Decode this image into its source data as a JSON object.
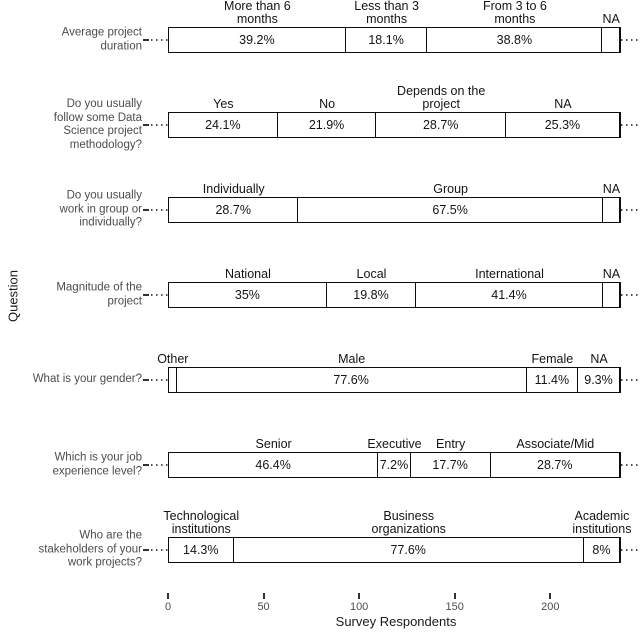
{
  "chart_data": {
    "type": "bar",
    "variant": "horizontal-stacked-percentage",
    "title": "",
    "xlabel": "Survey Respondents",
    "ylabel": "Question",
    "x_ticks": [
      0,
      50,
      100,
      150,
      200
    ],
    "xlim": [
      0,
      237
    ],
    "grid": "dotted-horizontal",
    "legend_position": "none",
    "bar_fill": "#ffffff",
    "bar_border": "#0d0d0d",
    "rows": [
      {
        "question": "Average project\nduration",
        "segments": [
          {
            "label": "More than 6\nmonths",
            "pct": 39.2,
            "value_label": "39.2%"
          },
          {
            "label": "Less than 3\nmonths",
            "pct": 18.1,
            "value_label": "18.1%"
          },
          {
            "label": "From 3 to 6\nmonths",
            "pct": 38.8,
            "value_label": "38.8%"
          },
          {
            "label": "NA",
            "pct": 3.9,
            "value_label": ""
          }
        ]
      },
      {
        "question": "Do you usually\nfollow some Data\nScience project\nmethodology?",
        "segments": [
          {
            "label": "Yes",
            "pct": 24.1,
            "value_label": "24.1%"
          },
          {
            "label": "No",
            "pct": 21.9,
            "value_label": "21.9%"
          },
          {
            "label": "Depends on the\nproject",
            "pct": 28.7,
            "value_label": "28.7%"
          },
          {
            "label": "NA",
            "pct": 25.3,
            "value_label": "25.3%"
          }
        ]
      },
      {
        "question": "Do you usually\nwork in group or\nindividually?",
        "segments": [
          {
            "label": "Individually",
            "pct": 28.7,
            "value_label": "28.7%"
          },
          {
            "label": "Group",
            "pct": 67.5,
            "value_label": "67.5%"
          },
          {
            "label": "NA",
            "pct": 3.8,
            "value_label": ""
          }
        ]
      },
      {
        "question": "Magnitude of the\nproject",
        "segments": [
          {
            "label": "National",
            "pct": 35,
            "value_label": "35%"
          },
          {
            "label": "Local",
            "pct": 19.8,
            "value_label": "19.8%"
          },
          {
            "label": "International",
            "pct": 41.4,
            "value_label": "41.4%"
          },
          {
            "label": "NA",
            "pct": 3.8,
            "value_label": ""
          }
        ]
      },
      {
        "question": "What is your gender?",
        "segments": [
          {
            "label": "Other",
            "pct": 1.7,
            "value_label": ""
          },
          {
            "label": "Male",
            "pct": 77.6,
            "value_label": "77.6%"
          },
          {
            "label": "Female",
            "pct": 11.4,
            "value_label": "11.4%"
          },
          {
            "label": "NA",
            "pct": 9.3,
            "value_label": "9.3%"
          }
        ]
      },
      {
        "question": "Which is your job\nexperience level?",
        "segments": [
          {
            "label": "Senior",
            "pct": 46.4,
            "value_label": "46.4%"
          },
          {
            "label": "Executive",
            "pct": 7.2,
            "value_label": "7.2%"
          },
          {
            "label": "Entry",
            "pct": 17.7,
            "value_label": "17.7%"
          },
          {
            "label": "Associate/Mid",
            "pct": 28.7,
            "value_label": "28.7%"
          }
        ]
      },
      {
        "question": "Who are the\nstakeholders of your\nwork projects?",
        "segments": [
          {
            "label": "Technological\ninstitutions",
            "pct": 14.3,
            "value_label": "14.3%"
          },
          {
            "label": "Business\norganizations",
            "pct": 77.6,
            "value_label": "77.6%"
          },
          {
            "label": "Academic\ninstitutions",
            "pct": 8,
            "value_label": "8%"
          }
        ]
      }
    ]
  }
}
